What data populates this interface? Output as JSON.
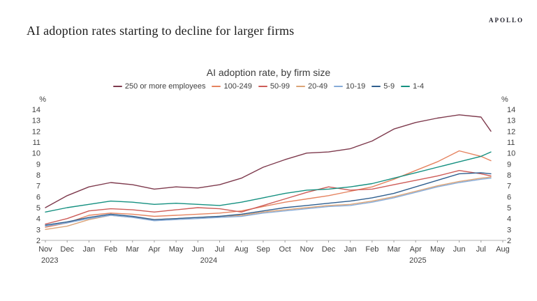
{
  "header": {
    "title": "AI adoption rates starting to decline for larger firms",
    "logo": "APOLLO"
  },
  "chart_data": {
    "type": "line",
    "title": "AI adoption rate, by firm size",
    "unit": "%",
    "ylim": [
      2,
      14
    ],
    "ytick_step": 1,
    "grid": false,
    "legend_position": "top",
    "x_tick_labels": [
      "Nov",
      "Dec",
      "Jan",
      "Feb",
      "Mar",
      "Apr",
      "May",
      "Jun",
      "Jul",
      "Aug",
      "Sep",
      "Oct",
      "Nov",
      "Dec",
      "Jan",
      "Feb",
      "Mar",
      "Apr",
      "May",
      "Jun",
      "Jul",
      "Aug"
    ],
    "year_labels": [
      {
        "label": "2023",
        "tick_index": 0.2
      },
      {
        "label": "2024",
        "tick_index": 7.5
      },
      {
        "label": "2025",
        "tick_index": 17.1
      }
    ],
    "series": [
      {
        "name": "250 or more employees",
        "color": "#7e3a4d",
        "values": [
          5.0,
          6.1,
          6.9,
          7.3,
          7.1,
          6.7,
          6.9,
          6.8,
          7.1,
          7.7,
          8.7,
          9.4,
          10.0,
          10.1,
          10.4,
          11.1,
          12.2,
          12.8,
          13.2,
          13.5,
          13.3,
          12.0
        ]
      },
      {
        "name": "100-249",
        "color": "#e5835f",
        "values": [
          3.2,
          3.6,
          4.3,
          4.5,
          4.4,
          4.2,
          4.3,
          4.4,
          4.5,
          4.7,
          5.1,
          5.5,
          5.8,
          6.1,
          6.5,
          6.9,
          7.6,
          8.4,
          9.2,
          10.2,
          9.7,
          9.3
        ]
      },
      {
        "name": "50-99",
        "color": "#cd5b57",
        "values": [
          3.5,
          4.0,
          4.7,
          4.9,
          4.8,
          4.6,
          4.8,
          5.0,
          4.9,
          4.6,
          5.2,
          5.8,
          6.4,
          6.9,
          6.6,
          6.7,
          7.1,
          7.5,
          7.9,
          8.4,
          8.1,
          7.9
        ]
      },
      {
        "name": "20-49",
        "color": "#dca477",
        "values": [
          3.0,
          3.3,
          3.9,
          4.3,
          4.1,
          3.9,
          4.0,
          4.1,
          4.2,
          4.3,
          4.6,
          4.8,
          5.0,
          5.2,
          5.3,
          5.6,
          6.0,
          6.5,
          7.0,
          7.4,
          7.7,
          7.8
        ]
      },
      {
        "name": "10-19",
        "color": "#86abd8",
        "values": [
          3.3,
          3.6,
          4.0,
          4.3,
          4.1,
          3.8,
          3.9,
          4.0,
          4.1,
          4.2,
          4.5,
          4.7,
          4.9,
          5.1,
          5.2,
          5.5,
          5.9,
          6.4,
          6.9,
          7.3,
          7.6,
          7.7
        ]
      },
      {
        "name": "5-9",
        "color": "#2e5e8e",
        "values": [
          3.4,
          3.7,
          4.1,
          4.4,
          4.2,
          3.9,
          4.0,
          4.1,
          4.2,
          4.4,
          4.7,
          5.0,
          5.2,
          5.4,
          5.6,
          5.9,
          6.3,
          6.9,
          7.5,
          8.1,
          8.2,
          8.1
        ]
      },
      {
        "name": "1-4",
        "color": "#149080",
        "values": [
          4.6,
          5.0,
          5.3,
          5.6,
          5.5,
          5.3,
          5.4,
          5.3,
          5.2,
          5.5,
          5.9,
          6.3,
          6.6,
          6.7,
          6.9,
          7.2,
          7.7,
          8.2,
          8.7,
          9.2,
          9.7,
          10.1
        ]
      }
    ]
  }
}
